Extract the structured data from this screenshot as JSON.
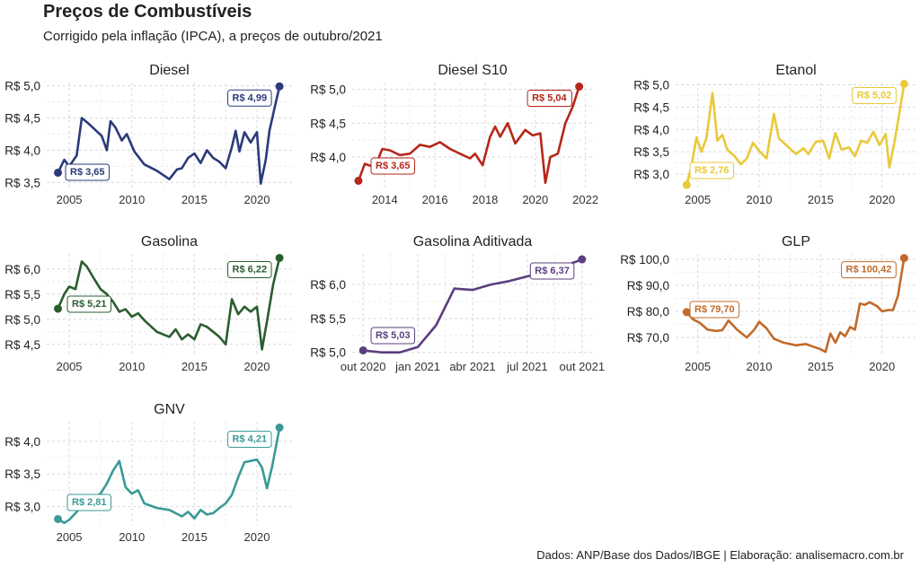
{
  "title": "Preços de Combustíveis",
  "subtitle": "Corrigido pela inflação (IPCA), a preços de outubro/2021",
  "caption": "Dados: ANP/Base dos Dados/IBGE | Elaboração: analisemacro.com.br",
  "chart_data": [
    {
      "type": "line",
      "title": "Diesel",
      "color": "#2b3a7a",
      "xticks": [
        "2005",
        "2010",
        "2015",
        "2020"
      ],
      "xtick_values": [
        2005,
        2010,
        2015,
        2020
      ],
      "yticks": [
        "R$ 3,5",
        "R$ 4,0",
        "R$ 4,5",
        "R$ 5,0"
      ],
      "ytick_values": [
        3.5,
        4.0,
        4.5,
        5.0
      ],
      "xlim": [
        2003.2,
        2022.8
      ],
      "ylim": [
        3.42,
        5.05
      ],
      "x": [
        2004.1,
        2004.6,
        2005.0,
        2005.6,
        2006.0,
        2006.5,
        2007.0,
        2007.6,
        2008.0,
        2008.3,
        2008.7,
        2009.2,
        2009.6,
        2010.2,
        2011.0,
        2012.0,
        2013.0,
        2013.6,
        2014.0,
        2014.5,
        2015.0,
        2015.5,
        2016.0,
        2016.5,
        2017.0,
        2017.5,
        2018.0,
        2018.3,
        2018.6,
        2019.0,
        2019.5,
        2020.0,
        2020.3,
        2020.7,
        2021.0,
        2021.4,
        2021.8
      ],
      "y": [
        3.65,
        3.85,
        3.75,
        3.92,
        4.5,
        4.42,
        4.33,
        4.22,
        4.0,
        4.45,
        4.35,
        4.15,
        4.25,
        3.98,
        3.78,
        3.68,
        3.55,
        3.7,
        3.72,
        3.88,
        3.95,
        3.8,
        4.0,
        3.88,
        3.82,
        3.72,
        4.05,
        4.3,
        3.98,
        4.28,
        4.12,
        4.28,
        3.48,
        3.85,
        4.3,
        4.65,
        4.99
      ],
      "start_label": "R$ 3,65",
      "end_label": "R$ 4,99"
    },
    {
      "type": "line",
      "title": "Diesel S10",
      "color": "#b5271a",
      "xticks": [
        "2014",
        "2016",
        "2018",
        "2020",
        "2022"
      ],
      "xtick_values": [
        2014,
        2016,
        2018,
        2020,
        2022
      ],
      "yticks": [
        "R$ 4,0",
        "R$ 4,5",
        "R$ 5,0"
      ],
      "ytick_values": [
        4.0,
        4.5,
        5.0
      ],
      "xlim": [
        2012.7,
        2022.3
      ],
      "ylim": [
        3.55,
        5.1
      ],
      "x": [
        2012.95,
        2013.2,
        2013.6,
        2013.9,
        2014.2,
        2014.6,
        2015.0,
        2015.4,
        2015.8,
        2016.2,
        2016.6,
        2017.0,
        2017.4,
        2017.6,
        2017.9,
        2018.2,
        2018.4,
        2018.6,
        2018.9,
        2019.2,
        2019.6,
        2019.9,
        2020.2,
        2020.4,
        2020.6,
        2020.9,
        2021.2,
        2021.5,
        2021.75
      ],
      "y": [
        3.65,
        3.9,
        3.85,
        4.12,
        4.1,
        4.03,
        4.05,
        4.18,
        4.15,
        4.22,
        4.12,
        4.05,
        3.98,
        4.05,
        3.88,
        4.3,
        4.45,
        4.3,
        4.5,
        4.2,
        4.4,
        4.32,
        4.35,
        3.62,
        4.0,
        4.05,
        4.5,
        4.75,
        5.04
      ],
      "start_label": "R$ 3,65",
      "end_label": "R$ 5,04"
    },
    {
      "type": "line",
      "title": "Etanol",
      "color": "#e8c93a",
      "xticks": [
        "2005",
        "2010",
        "2015",
        "2020"
      ],
      "xtick_values": [
        2005,
        2010,
        2015,
        2020
      ],
      "yticks": [
        "R$ 3,0",
        "R$ 3,5",
        "R$ 4,0",
        "R$ 4,5",
        "R$ 5,0"
      ],
      "ytick_values": [
        3.0,
        3.5,
        4.0,
        4.5,
        5.0
      ],
      "xlim": [
        2003.2,
        2022.8
      ],
      "ylim": [
        2.7,
        5.05
      ],
      "x": [
        2004.1,
        2004.5,
        2004.9,
        2005.3,
        2005.7,
        2006.2,
        2006.6,
        2007.0,
        2007.4,
        2008.0,
        2008.5,
        2009.0,
        2009.5,
        2010.0,
        2010.6,
        2011.2,
        2011.6,
        2012.2,
        2013.0,
        2013.6,
        2014.0,
        2014.6,
        2015.2,
        2015.7,
        2016.2,
        2016.7,
        2017.3,
        2017.8,
        2018.3,
        2018.8,
        2019.3,
        2019.8,
        2020.3,
        2020.6,
        2021.0,
        2021.5,
        2021.8
      ],
      "y": [
        2.76,
        3.2,
        3.82,
        3.5,
        3.8,
        4.82,
        3.75,
        3.88,
        3.55,
        3.4,
        3.22,
        3.35,
        3.7,
        3.52,
        3.35,
        4.35,
        3.8,
        3.65,
        3.45,
        3.58,
        3.45,
        3.72,
        3.75,
        3.35,
        3.92,
        3.55,
        3.6,
        3.4,
        3.75,
        3.7,
        3.95,
        3.65,
        3.9,
        3.15,
        3.7,
        4.5,
        5.02
      ],
      "start_label": "R$ 2,76",
      "end_label": "R$ 5,02"
    },
    {
      "type": "line",
      "title": "Gasolina",
      "color": "#2a5d2e",
      "xticks": [
        "2005",
        "2010",
        "2015",
        "2020"
      ],
      "xtick_values": [
        2005,
        2010,
        2015,
        2020
      ],
      "yticks": [
        "R$ 4,5",
        "R$ 5,0",
        "R$ 5,5",
        "R$ 6,0"
      ],
      "ytick_values": [
        4.5,
        5.0,
        5.5,
        6.0
      ],
      "xlim": [
        2003.2,
        2022.8
      ],
      "ylim": [
        4.3,
        6.3
      ],
      "x": [
        2004.1,
        2004.6,
        2005.0,
        2005.5,
        2006.0,
        2006.4,
        2007.0,
        2007.5,
        2008.0,
        2008.5,
        2009.0,
        2009.5,
        2010.0,
        2010.5,
        2011.0,
        2012.0,
        2013.0,
        2013.5,
        2014.0,
        2014.5,
        2015.0,
        2015.5,
        2016.0,
        2016.5,
        2017.0,
        2017.5,
        2018.0,
        2018.5,
        2019.0,
        2019.5,
        2020.0,
        2020.4,
        2020.8,
        2021.3,
        2021.8
      ],
      "y": [
        5.21,
        5.5,
        5.65,
        5.6,
        6.15,
        6.05,
        5.8,
        5.6,
        5.5,
        5.35,
        5.15,
        5.2,
        5.05,
        5.12,
        4.98,
        4.75,
        4.65,
        4.8,
        4.6,
        4.7,
        4.6,
        4.9,
        4.85,
        4.75,
        4.65,
        4.5,
        5.4,
        5.1,
        5.25,
        5.15,
        5.25,
        4.4,
        4.95,
        5.7,
        6.22
      ],
      "start_label": "R$ 5,21",
      "end_label": "R$ 6,22"
    },
    {
      "type": "line",
      "title": "Gasolina Aditivada",
      "color": "#5a3f7e",
      "xticks": [
        "out 2020",
        "jan 2021",
        "abr 2021",
        "jul 2021",
        "out 2021"
      ],
      "xtick_values": [
        0,
        3,
        6,
        9,
        12
      ],
      "yticks": [
        "R$ 5,0",
        "R$ 5,5",
        "R$ 6,0"
      ],
      "ytick_values": [
        5.0,
        5.5,
        6.0
      ],
      "xlim": [
        -0.6,
        12.6
      ],
      "ylim": [
        4.97,
        6.45
      ],
      "x": [
        0,
        1,
        2,
        3,
        4,
        5,
        6,
        7,
        8,
        9,
        10,
        11,
        12
      ],
      "y": [
        5.03,
        5.0,
        5.0,
        5.08,
        5.4,
        5.94,
        5.92,
        6.0,
        6.05,
        6.12,
        6.18,
        6.27,
        6.37
      ],
      "start_label": "R$ 5,03",
      "end_label": "R$ 6,37"
    },
    {
      "type": "line",
      "title": "GLP",
      "color": "#c26a2a",
      "xticks": [
        "2005",
        "2010",
        "2015",
        "2020"
      ],
      "xtick_values": [
        2005,
        2010,
        2015,
        2020
      ],
      "yticks": [
        "R$ 70,0",
        "R$ 80,0",
        "R$ 90,0",
        "R$ 100,0"
      ],
      "ytick_values": [
        70,
        80,
        90,
        100
      ],
      "xlim": [
        2003.2,
        2022.8
      ],
      "ylim": [
        63.5,
        102
      ],
      "x": [
        2004.1,
        2004.6,
        2005.2,
        2005.8,
        2006.5,
        2007.0,
        2007.5,
        2008.2,
        2009.0,
        2009.6,
        2010.0,
        2010.6,
        2011.2,
        2012.0,
        2013.0,
        2013.8,
        2014.4,
        2015.0,
        2015.4,
        2015.8,
        2016.2,
        2016.6,
        2017.0,
        2017.4,
        2017.8,
        2018.2,
        2018.6,
        2019.0,
        2019.6,
        2020.0,
        2020.5,
        2020.9,
        2021.3,
        2021.8
      ],
      "y": [
        79.7,
        77.0,
        75.5,
        73.0,
        72.5,
        72.8,
        76.5,
        73.0,
        70.0,
        73.0,
        76.0,
        73.5,
        69.5,
        68.0,
        67.0,
        67.5,
        66.5,
        65.5,
        64.5,
        71.5,
        68.0,
        72.0,
        70.5,
        74.0,
        73.0,
        83.0,
        82.5,
        83.5,
        82.0,
        80.0,
        80.5,
        80.5,
        86.0,
        100.42
      ],
      "start_label": "R$ 79,70",
      "end_label": "R$ 100,42"
    },
    {
      "type": "line",
      "title": "GNV",
      "color": "#3a9a96",
      "xticks": [
        "2005",
        "2010",
        "2015",
        "2020"
      ],
      "xtick_values": [
        2005,
        2010,
        2015,
        2020
      ],
      "yticks": [
        "R$ 3,0",
        "R$ 3,5",
        "R$ 4,0"
      ],
      "ytick_values": [
        3.0,
        3.5,
        4.0
      ],
      "xlim": [
        2003.2,
        2022.8
      ],
      "ylim": [
        2.72,
        4.3
      ],
      "x": [
        2004.1,
        2004.6,
        2005.0,
        2005.5,
        2006.0,
        2006.5,
        2007.0,
        2007.5,
        2008.0,
        2008.5,
        2009.0,
        2009.5,
        2010.0,
        2010.5,
        2011.0,
        2012.0,
        2013.0,
        2013.5,
        2014.0,
        2014.5,
        2015.0,
        2015.5,
        2016.0,
        2016.5,
        2017.0,
        2017.5,
        2018.0,
        2018.5,
        2019.0,
        2019.5,
        2020.0,
        2020.4,
        2020.8,
        2021.2,
        2021.5,
        2021.8
      ],
      "y": [
        2.81,
        2.75,
        2.8,
        2.9,
        3.0,
        3.1,
        3.15,
        3.2,
        3.35,
        3.55,
        3.7,
        3.3,
        3.2,
        3.25,
        3.05,
        2.98,
        2.95,
        2.9,
        2.85,
        2.92,
        2.82,
        2.95,
        2.88,
        2.9,
        2.98,
        3.05,
        3.18,
        3.45,
        3.68,
        3.7,
        3.72,
        3.6,
        3.28,
        3.6,
        3.9,
        4.21
      ],
      "start_label": "R$ 2,81",
      "end_label": "R$ 4,21"
    }
  ]
}
